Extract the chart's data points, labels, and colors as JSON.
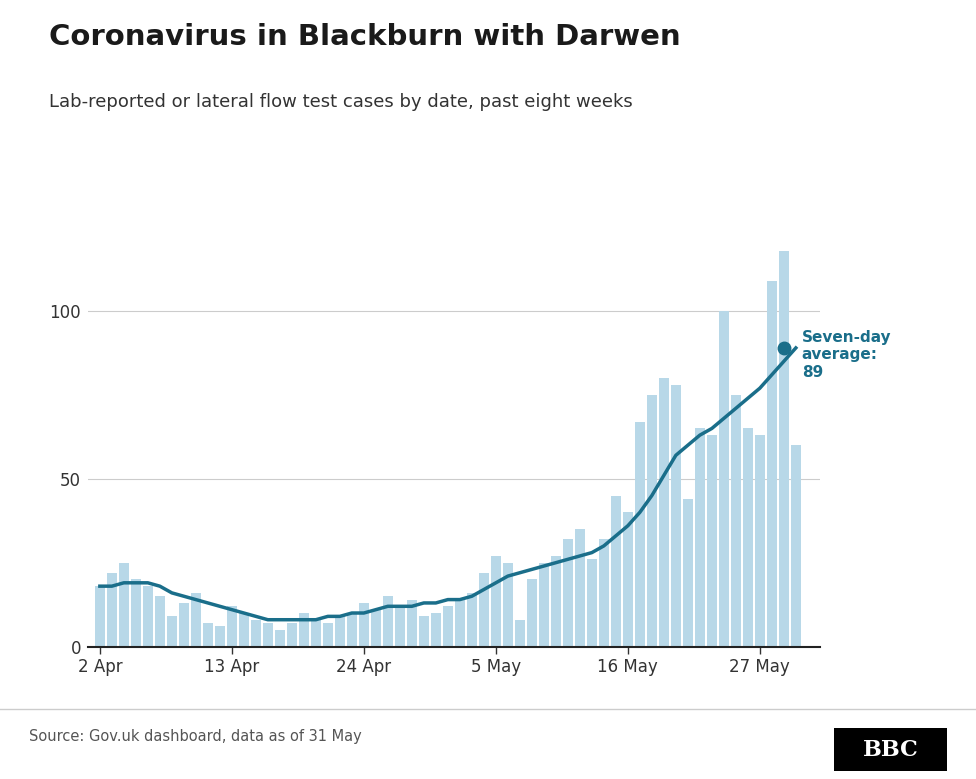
{
  "title": "Coronavirus in Blackburn with Darwen",
  "subtitle": "Lab-reported or lateral flow test cases by date, past eight weeks",
  "source_text": "Source: Gov.uk dashboard, data as of 31 May",
  "annotation_label": "Seven-day\naverage:\n89",
  "annotation_value": 89,
  "bar_color": "#b8d8e8",
  "line_color": "#1a6e8a",
  "dot_color": "#1a6e8a",
  "annotation_color": "#1a6e8a",
  "background_color": "#ffffff",
  "title_color": "#1a1a1a",
  "subtitle_color": "#333333",
  "source_color": "#555555",
  "yticks": [
    0,
    50,
    100
  ],
  "ylim": [
    0,
    130
  ],
  "xtick_labels": [
    "2 Apr",
    "13 Apr",
    "24 Apr",
    "5 May",
    "16 May",
    "27 May"
  ],
  "xtick_positions": [
    0,
    11,
    22,
    33,
    44,
    55
  ],
  "bar_values": [
    18,
    22,
    25,
    20,
    18,
    15,
    9,
    13,
    16,
    7,
    6,
    12,
    10,
    8,
    7,
    5,
    7,
    10,
    8,
    7,
    9,
    10,
    13,
    11,
    15,
    12,
    14,
    9,
    10,
    12,
    14,
    16,
    22,
    27,
    25,
    8,
    20,
    25,
    27,
    32,
    35,
    26,
    32,
    45,
    40,
    67,
    75,
    80,
    78,
    44,
    65,
    63,
    100,
    75,
    65,
    63,
    109,
    118,
    60,
    0
  ],
  "line_values": [
    18,
    18,
    19,
    19,
    19,
    18,
    16,
    15,
    14,
    13,
    12,
    11,
    10,
    9,
    8,
    8,
    8,
    8,
    8,
    9,
    9,
    10,
    10,
    11,
    12,
    12,
    12,
    13,
    13,
    14,
    14,
    15,
    17,
    19,
    21,
    22,
    23,
    24,
    25,
    26,
    27,
    28,
    30,
    33,
    36,
    40,
    45,
    51,
    57,
    60,
    63,
    65,
    68,
    71,
    74,
    77,
    81,
    85,
    89,
    89
  ],
  "num_bars": 59
}
